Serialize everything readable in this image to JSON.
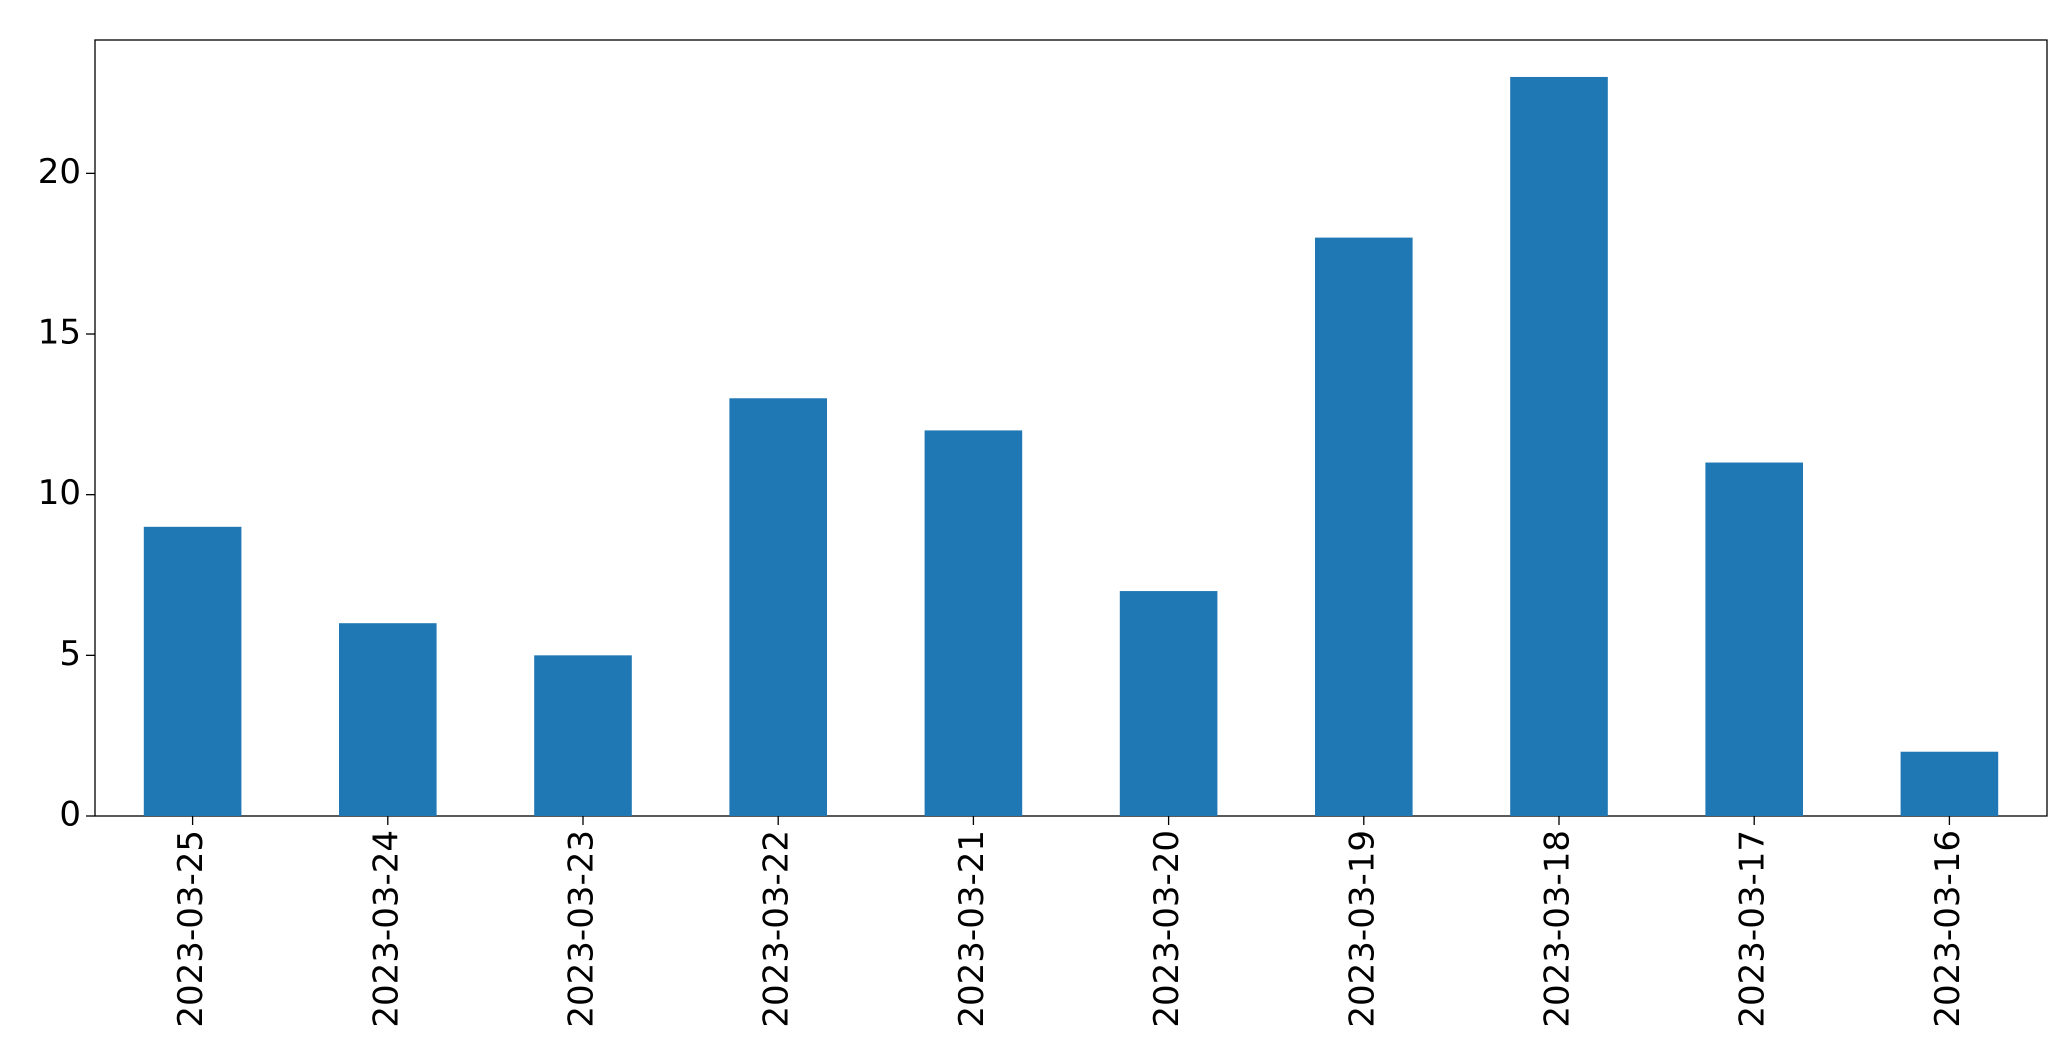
{
  "chart_data": {
    "type": "bar",
    "categories": [
      "2023-03-25",
      "2023-03-24",
      "2023-03-23",
      "2023-03-22",
      "2023-03-21",
      "2023-03-20",
      "2023-03-19",
      "2023-03-18",
      "2023-03-17",
      "2023-03-16"
    ],
    "values": [
      9,
      6,
      5,
      13,
      12,
      7,
      18,
      23,
      11,
      2
    ],
    "color": "#1f77b4",
    "ylim": [
      0,
      24.15
    ],
    "yticks": [
      0,
      5,
      10,
      15,
      20
    ],
    "grid": false
  }
}
